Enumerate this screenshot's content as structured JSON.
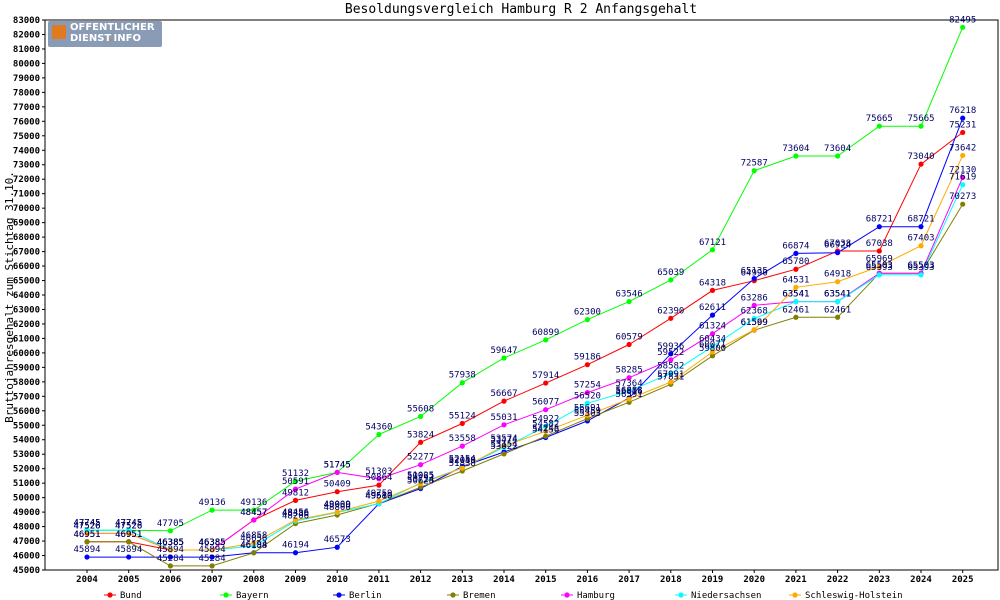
{
  "chart_data": {
    "type": "line",
    "title": "Besoldungsvergleich Hamburg R 2 Anfangsgehalt",
    "ylabel": "Bruttojahresgehalt zum Stichtag 31.10.",
    "xlabel": "",
    "ylim": [
      45000,
      83000
    ],
    "ytick_step": 1000,
    "grid": false,
    "legend_position": "bottom",
    "x": [
      "2004",
      "2005",
      "2006",
      "2007",
      "2008",
      "2009",
      "2010",
      "2011",
      "2012",
      "2013",
      "2014",
      "2015",
      "2016",
      "2017",
      "2018",
      "2019",
      "2020",
      "2021",
      "2022",
      "2023",
      "2024",
      "2025"
    ],
    "series": [
      {
        "name": "Bund",
        "color": "#ff0000",
        "values": [
          46951,
          46951,
          46385,
          46385,
          48457,
          49812,
          50409,
          50864,
          53824,
          55124,
          56667,
          57914,
          59186,
          60579,
          62390,
          64318,
          64990,
          65780,
          67038,
          67038,
          73040,
          75231
        ]
      },
      {
        "name": "Bayern",
        "color": "#00ff00",
        "values": [
          47745,
          47745,
          47705,
          49136,
          49136,
          51132,
          51745,
          54360,
          55608,
          57938,
          59647,
          60899,
          62300,
          63546,
          65039,
          67121,
          72587,
          73604,
          73604,
          75665,
          75665,
          82495
        ]
      },
      {
        "name": "Berlin",
        "color": "#0000ff",
        "values": [
          45894,
          45894,
          45894,
          45894,
          46194,
          46194,
          46573,
          49580,
          50628,
          52154,
          53154,
          54156,
          55303,
          56883,
          59936,
          62611,
          65135,
          66874,
          66924,
          68721,
          68721,
          76218
        ]
      },
      {
        "name": "Bremen",
        "color": "#808000",
        "values": [
          46951,
          46951,
          45284,
          45284,
          46188,
          48206,
          48800,
          49610,
          50724,
          51838,
          53022,
          54245,
          55459,
          56591,
          57831,
          59800,
          61569,
          62461,
          62461,
          65503,
          65503,
          70273
        ]
      },
      {
        "name": "Hamburg",
        "color": "#ff00ff",
        "values": [
          47526,
          47526,
          46385,
          46385,
          48457,
          50591,
          51745,
          51303,
          52277,
          53558,
          55031,
          56077,
          57254,
          58285,
          59522,
          61324,
          63286,
          63541,
          63541,
          65503,
          65503,
          72130
        ]
      },
      {
        "name": "Niedersachsen",
        "color": "#00ffff",
        "values": [
          47745,
          47745,
          46385,
          46385,
          46656,
          48386,
          48980,
          49580,
          51025,
          52059,
          53474,
          54922,
          56520,
          57364,
          58582,
          60434,
          62368,
          63541,
          63541,
          65393,
          65393,
          71619
        ]
      },
      {
        "name": "Schleswig-Holstein",
        "color": "#ffaa00",
        "values": [
          47526,
          47526,
          46385,
          46385,
          46858,
          48456,
          49009,
          49759,
          50965,
          52048,
          53574,
          54582,
          55691,
          56816,
          57991,
          60071,
          61599,
          64531,
          64918,
          65969,
          67403,
          73642
        ]
      }
    ]
  },
  "logo": {
    "line1": "OFFENTLICHER",
    "line2_a": "DIENST",
    "line2_dot": ".",
    "line2_b": "INFO"
  }
}
